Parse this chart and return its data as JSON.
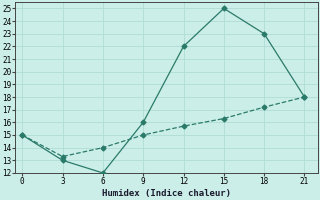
{
  "xlabel": "Humidex (Indice chaleur)",
  "line1_x": [
    0,
    3,
    6,
    9,
    12,
    15,
    18,
    21
  ],
  "line1_y": [
    15,
    13,
    12,
    16,
    22,
    25,
    23,
    18
  ],
  "line2_x": [
    0,
    3,
    6,
    9,
    12,
    15,
    18,
    21
  ],
  "line2_y": [
    15,
    13.3,
    14.0,
    15.0,
    15.7,
    16.3,
    17.2,
    18
  ],
  "line_color": "#2a7a6a",
  "bg_color": "#cceee8",
  "grid_color": "#b0ddd5",
  "xlim": [
    -0.5,
    22
  ],
  "ylim": [
    12,
    25.5
  ],
  "xticks": [
    0,
    3,
    6,
    9,
    12,
    15,
    18,
    21
  ],
  "yticks": [
    12,
    13,
    14,
    15,
    16,
    17,
    18,
    19,
    20,
    21,
    22,
    23,
    24,
    25
  ],
  "markersize": 2.5,
  "linewidth": 0.9,
  "tick_fontsize": 5.5,
  "xlabel_fontsize": 6.5
}
